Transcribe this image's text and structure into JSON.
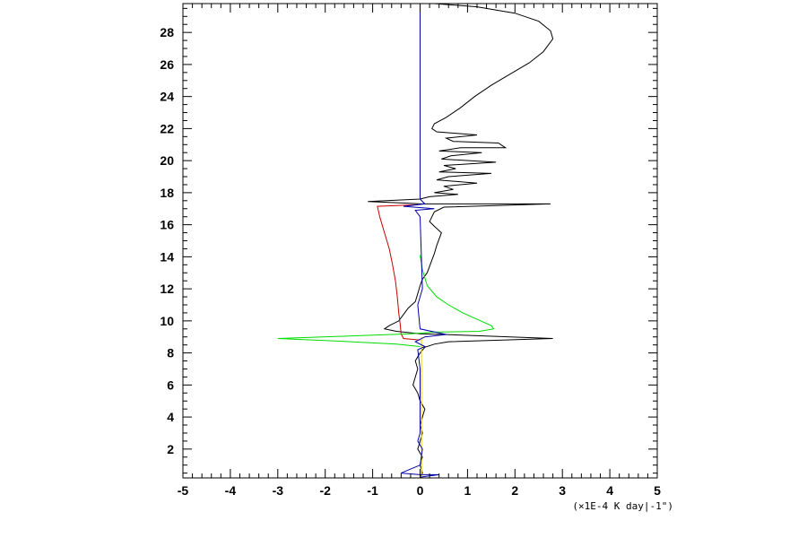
{
  "chart_data": {
    "type": "line",
    "title": "",
    "xlabel": "",
    "ylabel": "",
    "x_unit_label": "(×1E-4 K day|-1\")",
    "xlim": [
      -5,
      5
    ],
    "ylim": [
      0.2,
      29.8
    ],
    "x_ticks": [
      -5,
      -4,
      -3,
      -2,
      -1,
      0,
      1,
      2,
      3,
      4,
      5
    ],
    "x_tick_labels": [
      "-5",
      "-4",
      "-3",
      "-2",
      "-1",
      "0",
      "1",
      "2",
      "3",
      "4",
      "5"
    ],
    "y_ticks": [
      2,
      4,
      6,
      8,
      10,
      12,
      14,
      16,
      18,
      20,
      22,
      24,
      26,
      28
    ],
    "y_tick_labels": [
      "2",
      "4",
      "6",
      "8",
      "10",
      "12",
      "14",
      "16",
      "18",
      "20",
      "22",
      "24",
      "26",
      "28"
    ],
    "grid": false,
    "legend": "none",
    "series": [
      {
        "color": "#000000",
        "points": [
          [
            0.3,
            29.8
          ],
          [
            1.2,
            29.6
          ],
          [
            2.0,
            29.2
          ],
          [
            2.5,
            28.7
          ],
          [
            2.75,
            28.1
          ],
          [
            2.8,
            27.6
          ],
          [
            2.6,
            26.8
          ],
          [
            2.3,
            26.1
          ],
          [
            1.9,
            25.4
          ],
          [
            1.5,
            24.7
          ],
          [
            1.15,
            24.0
          ],
          [
            0.85,
            23.3
          ],
          [
            0.55,
            22.7
          ],
          [
            0.3,
            22.3
          ],
          [
            0.25,
            22.0
          ],
          [
            0.35,
            21.8
          ],
          [
            1.2,
            21.6
          ],
          [
            0.55,
            21.4
          ],
          [
            0.7,
            21.2
          ],
          [
            1.65,
            21.1
          ],
          [
            1.8,
            20.8
          ],
          [
            0.85,
            20.8
          ],
          [
            0.4,
            20.6
          ],
          [
            1.3,
            20.5
          ],
          [
            0.65,
            20.3
          ],
          [
            0.45,
            20.1
          ],
          [
            1.6,
            19.9
          ],
          [
            0.5,
            19.7
          ],
          [
            0.75,
            19.5
          ],
          [
            0.4,
            19.3
          ],
          [
            1.5,
            19.2
          ],
          [
            0.6,
            19.0
          ],
          [
            0.35,
            18.8
          ],
          [
            1.2,
            18.6
          ],
          [
            0.5,
            18.4
          ],
          [
            0.7,
            18.2
          ],
          [
            0.3,
            18.0
          ],
          [
            0.8,
            17.9
          ],
          [
            0.2,
            17.75
          ],
          [
            0.0,
            17.6
          ],
          [
            -1.1,
            17.45
          ],
          [
            -0.3,
            17.35
          ],
          [
            0.0,
            17.3
          ],
          [
            2.75,
            17.3
          ],
          [
            0.5,
            17.1
          ],
          [
            0.3,
            16.8
          ],
          [
            0.25,
            16.5
          ],
          [
            0.2,
            16.2
          ],
          [
            0.3,
            15.9
          ],
          [
            0.45,
            15.5
          ],
          [
            0.4,
            15.1
          ],
          [
            0.35,
            14.7
          ],
          [
            0.3,
            14.2
          ],
          [
            0.25,
            13.8
          ],
          [
            0.2,
            13.4
          ],
          [
            0.15,
            13.0
          ],
          [
            0.05,
            12.6
          ],
          [
            0.0,
            12.2
          ],
          [
            -0.05,
            11.7
          ],
          [
            -0.1,
            11.2
          ],
          [
            -0.25,
            10.8
          ],
          [
            -0.35,
            10.4
          ],
          [
            -0.45,
            10.0
          ],
          [
            -0.65,
            9.7
          ],
          [
            -0.75,
            9.5
          ],
          [
            -0.5,
            9.35
          ],
          [
            0.0,
            9.2
          ],
          [
            0.5,
            9.15
          ],
          [
            2.8,
            8.9
          ],
          [
            0.6,
            8.7
          ],
          [
            0.3,
            8.55
          ],
          [
            0.1,
            8.35
          ],
          [
            0.0,
            8.0
          ],
          [
            -0.1,
            7.5
          ],
          [
            -0.05,
            7.0
          ],
          [
            -0.1,
            6.5
          ],
          [
            -0.15,
            6.0
          ],
          [
            -0.05,
            5.5
          ],
          [
            0.0,
            5.0
          ],
          [
            0.1,
            4.5
          ],
          [
            0.05,
            4.0
          ],
          [
            0.0,
            3.5
          ],
          [
            0.05,
            3.0
          ],
          [
            0.0,
            2.5
          ],
          [
            -0.05,
            2.0
          ],
          [
            0.05,
            1.5
          ],
          [
            0.0,
            1.0
          ],
          [
            0.05,
            0.5
          ],
          [
            0.0,
            0.3
          ]
        ]
      },
      {
        "color": "#cc0000",
        "points": [
          [
            -0.05,
            17.25
          ],
          [
            -0.9,
            17.15
          ],
          [
            -0.85,
            16.5
          ],
          [
            -0.75,
            15.5
          ],
          [
            -0.65,
            14.5
          ],
          [
            -0.58,
            13.5
          ],
          [
            -0.52,
            12.5
          ],
          [
            -0.48,
            11.5
          ],
          [
            -0.45,
            10.5
          ],
          [
            -0.42,
            9.8
          ],
          [
            -0.4,
            9.2
          ],
          [
            -0.35,
            8.9
          ],
          [
            0.0,
            8.8
          ]
        ]
      },
      {
        "color": "#00dd00",
        "points": [
          [
            0.0,
            14.1
          ],
          [
            0.05,
            13.2
          ],
          [
            0.15,
            12.2
          ],
          [
            0.35,
            11.5
          ],
          [
            0.6,
            11.0
          ],
          [
            0.9,
            10.5
          ],
          [
            1.2,
            10.1
          ],
          [
            1.5,
            9.7
          ],
          [
            1.55,
            9.5
          ],
          [
            1.25,
            9.35
          ],
          [
            0.3,
            9.3
          ],
          [
            -0.2,
            9.2
          ],
          [
            -1.5,
            9.05
          ],
          [
            -3.0,
            8.9
          ],
          [
            -1.8,
            8.75
          ],
          [
            -0.5,
            8.55
          ],
          [
            0.0,
            8.4
          ]
        ]
      },
      {
        "color": "#e8d000",
        "points": [
          [
            0.03,
            9.0
          ],
          [
            0.03,
            7.0
          ],
          [
            0.03,
            5.0
          ],
          [
            0.03,
            3.0
          ],
          [
            0.03,
            1.0
          ],
          [
            0.03,
            0.3
          ]
        ]
      },
      {
        "color": "#0000aa",
        "points": [
          [
            0.0,
            29.8
          ],
          [
            0.0,
            17.6
          ],
          [
            0.1,
            17.3
          ],
          [
            -0.35,
            17.15
          ],
          [
            0.3,
            17.0
          ],
          [
            -0.1,
            16.9
          ],
          [
            0.0,
            16.5
          ],
          [
            0.05,
            12.0
          ],
          [
            -0.05,
            11.0
          ],
          [
            0.0,
            9.5
          ],
          [
            0.55,
            9.15
          ],
          [
            0.1,
            9.0
          ],
          [
            -0.1,
            8.7
          ],
          [
            0.1,
            8.4
          ],
          [
            -0.05,
            8.2
          ],
          [
            0.0,
            7.0
          ],
          [
            0.0,
            3.0
          ],
          [
            -0.05,
            2.5
          ],
          [
            0.05,
            2.0
          ],
          [
            0.0,
            1.0
          ],
          [
            -0.4,
            0.5
          ],
          [
            0.0,
            0.4
          ],
          [
            0.4,
            0.4
          ],
          [
            0.0,
            0.25
          ]
        ]
      }
    ]
  }
}
